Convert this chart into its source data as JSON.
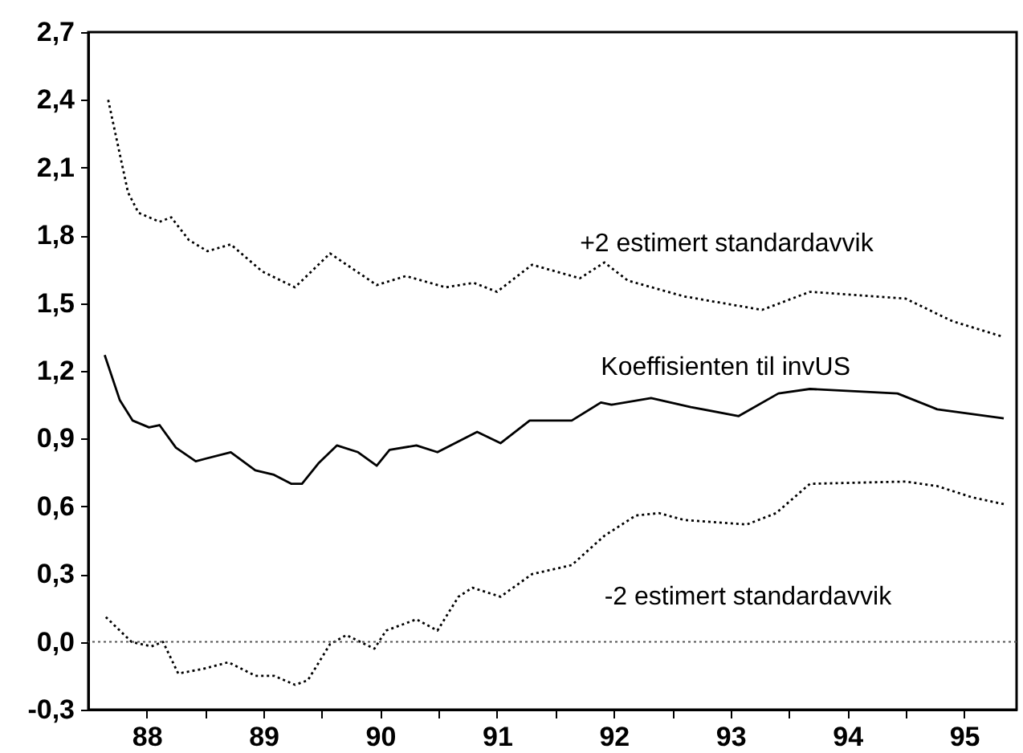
{
  "chart_data": {
    "type": "line",
    "xlim": [
      87.5,
      95.45
    ],
    "xticks": [
      88,
      {
        "value": 88.5,
        "label": null
      },
      89,
      {
        "value": 89.5,
        "label": null
      },
      90,
      {
        "value": 90.5,
        "label": null
      },
      91,
      {
        "value": 91.5,
        "label": null
      },
      92,
      {
        "value": 92.5,
        "label": null
      },
      93,
      {
        "value": 93.5,
        "label": null
      },
      94,
      {
        "value": 94.5,
        "label": null
      },
      95
    ],
    "ylim": [
      -0.3,
      2.7
    ],
    "yticks": [
      {
        "value": -0.3,
        "label": "-0,3"
      },
      {
        "value": 0,
        "label": "0,0"
      },
      {
        "value": 0.3,
        "label": "0,3"
      },
      {
        "value": 0.6,
        "label": "0,6"
      },
      {
        "value": 0.9,
        "label": "0,9"
      },
      {
        "value": 1.2,
        "label": "1,2"
      },
      {
        "value": 1.5,
        "label": "1,5"
      },
      {
        "value": 1.8,
        "label": "1,8"
      },
      {
        "value": 2.1,
        "label": "2,1"
      },
      {
        "value": 2.4,
        "label": "2,4"
      },
      {
        "value": 2.7,
        "label": "2,7"
      }
    ],
    "grid": false,
    "marker": "none",
    "series": [
      {
        "name": "+2 estimert standardavvik",
        "color": "#000000",
        "line_style": "dotted",
        "x": [
          87.67,
          87.84,
          87.93,
          88.11,
          88.21,
          88.36,
          88.52,
          88.72,
          88.99,
          89.27,
          89.57,
          89.97,
          90.22,
          90.56,
          90.8,
          91.0,
          91.3,
          91.71,
          91.92,
          92.12,
          92.6,
          93.27,
          93.68,
          94.5,
          94.9,
          95.34
        ],
        "values": [
          2.4,
          1.99,
          1.9,
          1.86,
          1.88,
          1.78,
          1.73,
          1.76,
          1.64,
          1.57,
          1.72,
          1.58,
          1.62,
          1.57,
          1.59,
          1.55,
          1.67,
          1.61,
          1.68,
          1.6,
          1.53,
          1.47,
          1.55,
          1.52,
          1.42,
          1.35
        ]
      },
      {
        "name": "Koeffisienten til invUS",
        "color": "#000000",
        "line_style": "solid",
        "x": [
          87.64,
          87.77,
          87.88,
          88.02,
          88.11,
          88.25,
          88.42,
          88.72,
          88.93,
          89.09,
          89.24,
          89.33,
          89.47,
          89.63,
          89.81,
          89.97,
          90.08,
          90.31,
          90.49,
          90.83,
          91.03,
          91.28,
          91.64,
          91.89,
          91.98,
          92.32,
          92.66,
          93.07,
          93.41,
          93.68,
          94.43,
          94.77,
          95.34
        ],
        "values": [
          1.27,
          1.07,
          0.98,
          0.95,
          0.96,
          0.86,
          0.8,
          0.84,
          0.76,
          0.74,
          0.7,
          0.7,
          0.79,
          0.87,
          0.84,
          0.78,
          0.85,
          0.87,
          0.84,
          0.93,
          0.88,
          0.98,
          0.98,
          1.06,
          1.05,
          1.08,
          1.04,
          1.0,
          1.1,
          1.12,
          1.1,
          1.03,
          0.99
        ]
      },
      {
        "name": "-2 estimert standardavvik",
        "color": "#000000",
        "line_style": "dotted",
        "x": [
          87.65,
          87.87,
          88.04,
          88.14,
          88.27,
          88.48,
          88.7,
          88.93,
          89.09,
          89.27,
          89.38,
          89.57,
          89.71,
          89.95,
          90.05,
          90.31,
          90.49,
          90.67,
          90.79,
          91.03,
          91.3,
          91.64,
          91.92,
          92.19,
          92.39,
          92.6,
          93.14,
          93.39,
          93.68,
          94.5,
          94.77,
          95.07,
          95.34
        ],
        "values": [
          0.11,
          0.0,
          -0.02,
          0.0,
          -0.14,
          -0.12,
          -0.09,
          -0.15,
          -0.15,
          -0.19,
          -0.17,
          -0.01,
          0.03,
          -0.03,
          0.05,
          0.1,
          0.05,
          0.2,
          0.24,
          0.2,
          0.3,
          0.34,
          0.47,
          0.56,
          0.57,
          0.54,
          0.52,
          0.57,
          0.7,
          0.71,
          0.69,
          0.64,
          0.61
        ]
      }
    ],
    "ref_lines": [
      {
        "axis": "y",
        "value": 0,
        "color": "#555555",
        "line_style": "dotted"
      }
    ]
  }
}
